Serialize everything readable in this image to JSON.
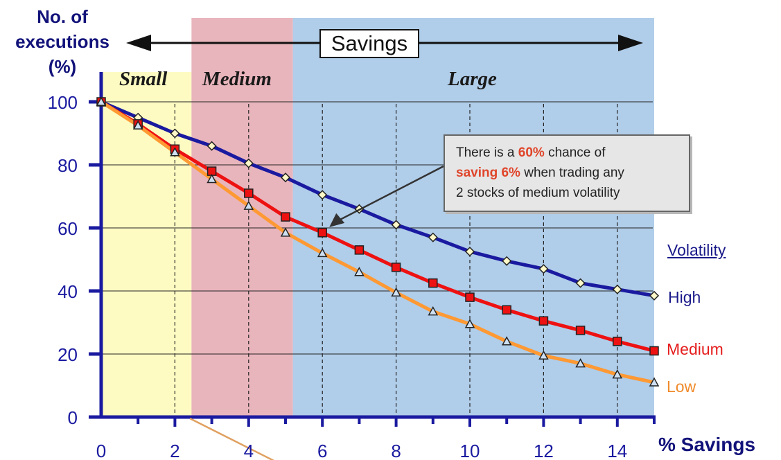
{
  "chart_data": {
    "type": "line",
    "ylabel_lines": [
      "No. of",
      "executions",
      "(%)"
    ],
    "xlabel": "% Savings",
    "xlim": [
      0,
      15
    ],
    "ylim": [
      0,
      100
    ],
    "x_ticks": [
      0,
      2,
      4,
      6,
      8,
      10,
      12,
      14
    ],
    "y_ticks": [
      0,
      20,
      40,
      60,
      80,
      100
    ],
    "x": [
      0,
      1,
      2,
      3,
      4,
      5,
      6,
      7,
      8,
      9,
      10,
      11,
      12,
      13,
      14,
      15
    ],
    "series": [
      {
        "name": "High",
        "color": "#1a1aa0",
        "marker": "diamond",
        "values": [
          100,
          95,
          90,
          86,
          80.5,
          76,
          70.5,
          66,
          61,
          57,
          52.5,
          49.5,
          47,
          42.5,
          40.5,
          38.5
        ]
      },
      {
        "name": "Medium",
        "color": "#ee1111",
        "marker": "square",
        "values": [
          100,
          93,
          85,
          78,
          71,
          63.5,
          58.5,
          53,
          47.5,
          42.5,
          38,
          34,
          30.5,
          27.5,
          24,
          21
        ]
      },
      {
        "name": "Low",
        "color": "#ff9933",
        "marker": "triangle",
        "values": [
          100,
          92.5,
          84,
          75.5,
          67,
          58.5,
          52,
          46,
          39.5,
          33.5,
          29.5,
          24,
          19.5,
          17,
          13.5,
          11
        ]
      }
    ],
    "bands": [
      {
        "label": "Small",
        "from": 0,
        "to": 2.45,
        "color": "#fdfbc2"
      },
      {
        "label": "Medium",
        "from": 2.45,
        "to": 5.2,
        "color": "#e9b5bc"
      },
      {
        "label": "Large",
        "from": 5.2,
        "to": 15,
        "color": "#b0cde9"
      }
    ],
    "savings_banner": "Savings",
    "legend_title": "Volatility",
    "annotation": {
      "point": {
        "x": 6,
        "y": 58.5
      },
      "line1_pre": "There is a ",
      "line1_hl": "60%",
      "line1_post": " chance of",
      "line2_hl": "saving 6%",
      "line2_post": " when trading any",
      "line3": "2 stocks of medium volatility",
      "highlight_color": "#e0452a"
    },
    "grid": true
  }
}
